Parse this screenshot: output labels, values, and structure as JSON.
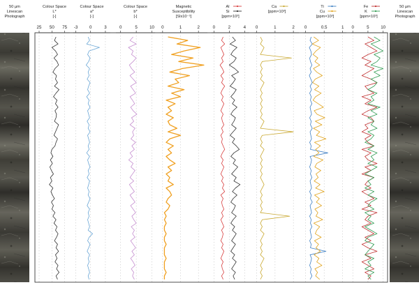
{
  "chart_data": {
    "type": "line",
    "y_axis": {
      "label": "",
      "ticks_shown": false
    },
    "photo_strips": [
      {
        "title": [
          "50 µm",
          "Linescan",
          "Photograph"
        ],
        "side": "left"
      },
      {
        "title": [
          "50 µm",
          "Linescan",
          "Photograph"
        ],
        "side": "right"
      }
    ],
    "panels": [
      {
        "title": [
          "Colour Space",
          "L*",
          "[-]"
        ],
        "ticks": [
          "25",
          "50",
          "75"
        ],
        "xlim": [
          25,
          85
        ],
        "series": [
          {
            "name": "L*",
            "color": "#333333",
            "values": [
              58,
              55,
              62,
              50,
              57,
              61,
              54,
              60,
              63,
              56,
              52,
              59,
              57,
              61,
              55,
              64,
              58,
              53,
              60,
              57,
              62,
              56,
              59,
              58,
              55,
              63,
              60,
              57,
              54,
              61,
              58,
              56,
              50,
              48,
              52,
              47,
              51,
              46,
              49,
              53,
              47,
              50,
              45,
              52,
              48,
              51,
              55,
              49,
              53,
              50,
              56,
              52,
              58,
              54,
              60,
              57,
              62,
              59,
              55,
              61,
              58,
              63,
              57,
              60,
              56,
              62,
              59,
              64,
              58,
              61
            ]
          }
        ]
      },
      {
        "title": [
          "Colour Space",
          "a*",
          "[-]"
        ],
        "ticks": [
          "-3",
          "0",
          "3"
        ],
        "xlim": [
          -3.5,
          4
        ],
        "series": [
          {
            "name": "a*",
            "color": "#6aa6d6",
            "values": [
              -0.5,
              -0.2,
              -0.8,
              1.8,
              -0.3,
              -0.6,
              -0.1,
              -0.4,
              -0.9,
              -0.2,
              -0.5,
              -0.3,
              -0.7,
              -0.1,
              -0.4,
              -0.6,
              -0.2,
              -0.8,
              -0.3,
              -0.5,
              -0.1,
              -0.6,
              -0.4,
              -0.2,
              -0.7,
              -0.3,
              -0.5,
              -0.1,
              -0.6,
              -0.4,
              -0.2,
              -0.5,
              -0.3,
              -0.8,
              -0.2,
              -0.6,
              -0.4,
              -0.1,
              -0.5,
              -0.3,
              -0.7,
              -0.2,
              -0.4,
              -0.6,
              -0.3,
              -0.5,
              -0.1,
              -0.4,
              -0.7,
              -0.2,
              -0.5,
              -0.3,
              -0.6,
              -0.4,
              -0.2,
              -0.5,
              0.4,
              -0.3,
              -0.6,
              -0.1,
              -0.4,
              -0.7,
              -0.2,
              -0.5,
              -0.3,
              -0.6,
              -0.4,
              -0.2,
              -0.5,
              -0.3
            ]
          }
        ]
      },
      {
        "title": [
          "Colour Space",
          "b*",
          "[-]"
        ],
        "ticks": [
          "0",
          "5",
          "10"
        ],
        "xlim": [
          -1.5,
          11
        ],
        "series": [
          {
            "name": "b*",
            "color": "#c58fd0",
            "values": [
              4,
              3,
              5,
              2.5,
              4,
              3.5,
              5,
              4,
              2.8,
              3.5,
              4.5,
              3,
              4,
              5,
              3.2,
              4,
              4.8,
              3,
              3.8,
              4.5,
              3.2,
              4,
              5.2,
              3.5,
              4.2,
              3,
              4.6,
              3.8,
              4.2,
              3.3,
              4.8,
              3.6,
              4.4,
              3,
              3.8,
              2.6,
              4,
              3.3,
              4.6,
              3.8,
              3,
              4.2,
              2.8,
              3.6,
              4.4,
              3,
              3.8,
              4.6,
              3.2,
              4,
              4.8,
              3.6,
              4.2,
              5,
              3.4,
              4.4,
              3.8,
              4.6,
              3.2,
              4,
              4.8,
              3.6,
              4.4,
              3.2,
              4,
              4.6,
              3.4,
              4.2,
              3.8,
              4.4
            ]
          }
        ]
      },
      {
        "title": [
          "Magnetic",
          "Susceptibility",
          "[SIx10⁻⁵]"
        ],
        "ticks": [
          "0",
          "1",
          "2"
        ],
        "xlim": [
          -0.15,
          2.5
        ],
        "series": [
          {
            "name": "Magnetic Susceptibility",
            "color": "#f0a020",
            "values": [
              0.3,
              1.4,
              0.8,
              2.1,
              1.2,
              0.5,
              1.7,
              0.9,
              2.3,
              1.1,
              0.4,
              1.5,
              0.7,
              0.9,
              0.3,
              1.2,
              0.5,
              1.0,
              0.2,
              0.7,
              0.3,
              0.5,
              0.2,
              0.6,
              0.3,
              0.4,
              0.8,
              0.3,
              1.0,
              0.4,
              0.2,
              0.6,
              0.3,
              0.5,
              0.2,
              0.4,
              0.7,
              0.3,
              0.5,
              0.2,
              0.4,
              0.3,
              0.6,
              0.2,
              0.4,
              0.5,
              0.3,
              0.2,
              0.4,
              0.3,
              0.1,
              0.2,
              0.1,
              0.2,
              0.1,
              0.1,
              0.2,
              0.1,
              0.1,
              0.2,
              0.1,
              0.1,
              0.1,
              0.2,
              0.1,
              0.1,
              0.1,
              0.2,
              0.1,
              0.1
            ]
          }
        ]
      },
      {
        "title": [
          "Al",
          "Si",
          "[ppm×10³]"
        ],
        "ticks": [
          "0",
          "2",
          "4"
        ],
        "xlim": [
          -0.3,
          4.6
        ],
        "legend": [
          "Al",
          "Si"
        ],
        "series": [
          {
            "name": "Al",
            "color": "#d84040",
            "values": [
              1.2,
              1.0,
              1.4,
              0.9,
              1.1,
              1.3,
              1.0,
              1.2,
              0.8,
              1.1,
              1.3,
              0.9,
              1.2,
              1.0,
              1.4,
              1.1,
              0.9,
              1.2,
              1.0,
              1.3,
              1.1,
              0.9,
              1.2,
              1.0,
              1.1,
              1.3,
              1.0,
              1.2,
              0.9,
              1.1,
              1.0,
              1.2,
              1.4,
              1.1,
              0.9,
              1.2,
              1.0,
              1.3,
              1.1,
              0.9,
              1.2,
              1.0,
              1.3,
              1.1,
              1.4,
              0.9,
              1.2,
              1.0,
              1.1,
              1.3,
              1.0,
              1.2,
              0.9,
              1.1,
              1.3,
              1.0,
              1.2,
              1.1,
              0.9,
              1.2,
              1.0,
              1.3,
              1.1,
              0.9,
              1.2,
              1.0,
              1.1,
              1.3,
              1.0,
              1.2
            ]
          },
          {
            "name": "Si",
            "color": "#333333",
            "values": [
              2.4,
              2.8,
              2.1,
              3.0,
              2.5,
              2.2,
              2.9,
              2.6,
              2.0,
              2.7,
              3.2,
              2.3,
              2.8,
              2.5,
              2.1,
              2.9,
              2.6,
              2.2,
              2.7,
              2.4,
              3.0,
              2.5,
              2.2,
              2.8,
              2.6,
              2.3,
              2.9,
              2.5,
              2.1,
              2.7,
              2.4,
              2.9,
              3.3,
              2.6,
              2.2,
              2.8,
              2.5,
              3.1,
              2.7,
              2.3,
              2.9,
              2.6,
              3.4,
              2.8,
              2.4,
              3.0,
              2.5,
              2.2,
              2.8,
              2.6,
              2.3,
              2.9,
              2.5,
              2.2,
              2.7,
              2.4,
              2.9,
              2.6,
              2.3,
              2.8,
              2.5,
              2.2,
              2.7,
              2.4,
              2.9,
              2.6,
              2.3,
              2.8,
              2.5,
              2.7
            ]
          }
        ]
      },
      {
        "title": [
          "Ca",
          "[ppm×10³]"
        ],
        "ticks": [
          "0",
          "1",
          "2"
        ],
        "xlim": [
          -0.1,
          2.3
        ],
        "legend": [
          "Ca"
        ],
        "series": [
          {
            "name": "Ca",
            "color": "#c9a830",
            "values": [
              0.2,
              0.3,
              0.2,
              0.4,
              0.3,
              0.2,
              1.9,
              0.3,
              0.2,
              0.3,
              0.2,
              0.3,
              0.2,
              0.4,
              0.3,
              0.2,
              0.3,
              0.2,
              0.3,
              0.2,
              0.3,
              0.2,
              0.3,
              0.2,
              0.4,
              0.3,
              0.2,
              2.0,
              0.3,
              0.2,
              0.3,
              0.2,
              0.4,
              0.3,
              0.2,
              0.3,
              0.2,
              0.3,
              0.2,
              0.3,
              0.2,
              0.3,
              0.4,
              0.3,
              0.2,
              0.3,
              0.2,
              0.3,
              0.2,
              0.3,
              0.2,
              1.8,
              0.3,
              0.2,
              0.3,
              0.2,
              0.4,
              0.3,
              0.2,
              0.3,
              0.2,
              0.3,
              0.2,
              0.4,
              0.3,
              0.2,
              0.3,
              0.2,
              0.3,
              0.2
            ]
          }
        ]
      },
      {
        "title": [
          "Ti",
          "Cu",
          "[ppm×10³]"
        ],
        "ticks": [
          "0",
          "0.5",
          "1"
        ],
        "xlim": [
          -0.05,
          1.1
        ],
        "legend": [
          "Ti",
          "Cu"
        ],
        "series": [
          {
            "name": "Ti",
            "color": "#3e7fc4",
            "values": [
              0.15,
              0.12,
              0.18,
              0.1,
              0.14,
              0.16,
              0.11,
              0.13,
              0.17,
              0.12,
              0.15,
              0.1,
              0.14,
              0.18,
              0.12,
              0.16,
              0.11,
              0.15,
              0.13,
              0.17,
              0.12,
              0.14,
              0.16,
              0.11,
              0.15,
              0.13,
              0.18,
              0.12,
              0.14,
              0.16,
              0.11,
              0.15,
              0.13,
              0.6,
              0.12,
              0.16,
              0.14,
              0.11,
              0.15,
              0.13,
              0.17,
              0.12,
              0.14,
              0.16,
              0.11,
              0.15,
              0.13,
              0.18,
              0.12,
              0.14,
              0.16,
              0.11,
              0.15,
              0.13,
              0.17,
              0.12,
              0.14,
              0.16,
              0.11,
              0.15,
              0.13,
              0.55,
              0.12,
              0.16,
              0.14,
              0.11,
              0.15,
              0.13,
              0.17,
              0.12
            ]
          },
          {
            "name": "Cu",
            "color": "#e0a21a",
            "values": [
              0.22,
              0.35,
              0.18,
              0.4,
              0.28,
              0.2,
              0.33,
              0.25,
              0.38,
              0.21,
              0.3,
              0.45,
              0.26,
              0.19,
              0.36,
              0.24,
              0.42,
              0.27,
              0.2,
              0.34,
              0.48,
              0.23,
              0.31,
              0.52,
              0.26,
              0.44,
              0.21,
              0.38,
              0.29,
              0.55,
              0.24,
              0.4,
              0.27,
              0.36,
              0.22,
              0.47,
              0.3,
              0.25,
              0.41,
              0.28,
              0.34,
              0.23,
              0.39,
              0.27,
              0.5,
              0.24,
              0.37,
              0.29,
              0.43,
              0.25,
              0.33,
              0.28,
              0.46,
              0.22,
              0.38,
              0.3,
              0.26,
              0.42,
              0.24,
              0.35,
              0.28,
              0.4,
              0.23,
              0.36,
              0.3,
              0.44,
              0.25,
              0.32,
              0.27,
              0.38
            ]
          }
        ]
      },
      {
        "title": [
          "Fe",
          "K",
          "[ppm×10³]"
        ],
        "ticks": [
          "0",
          "5",
          "10"
        ],
        "xlim": [
          -0.5,
          11
        ],
        "legend": [
          "Fe",
          "K"
        ],
        "series": [
          {
            "name": "Fe",
            "color": "#c03030",
            "values": [
              5,
              7,
              4,
              6,
              8,
              5,
              3,
              6,
              4,
              7,
              5,
              3,
              6,
              8,
              4,
              5,
              7,
              3,
              6,
              4,
              8,
              5,
              3,
              6,
              7,
              4,
              5,
              3,
              6,
              4,
              5,
              7,
              3,
              6,
              4,
              5,
              8,
              4,
              6,
              3,
              7,
              5,
              4,
              6,
              3,
              5,
              7,
              4,
              6,
              3,
              8,
              5,
              4,
              6,
              3,
              5,
              7,
              4,
              6,
              3,
              5,
              8,
              4,
              6,
              3,
              5,
              7,
              4,
              6,
              5
            ]
          },
          {
            "name": "K",
            "color": "#2e9a50",
            "values": [
              7,
              9,
              6,
              8,
              10,
              7,
              9,
              8,
              6,
              10,
              7,
              9,
              6,
              8,
              7,
              5,
              8,
              6,
              7,
              5,
              9,
              6,
              8,
              5,
              7,
              6,
              8,
              5,
              7,
              6,
              4,
              7,
              5,
              8,
              6,
              7,
              5,
              8,
              6,
              4,
              7,
              5,
              6,
              4,
              7,
              5,
              8,
              6,
              5,
              7,
              4,
              6,
              5,
              7,
              4,
              6,
              8,
              5,
              4,
              7,
              6,
              5,
              4,
              7,
              5,
              6,
              4,
              7,
              5,
              6
            ]
          }
        ]
      }
    ]
  }
}
